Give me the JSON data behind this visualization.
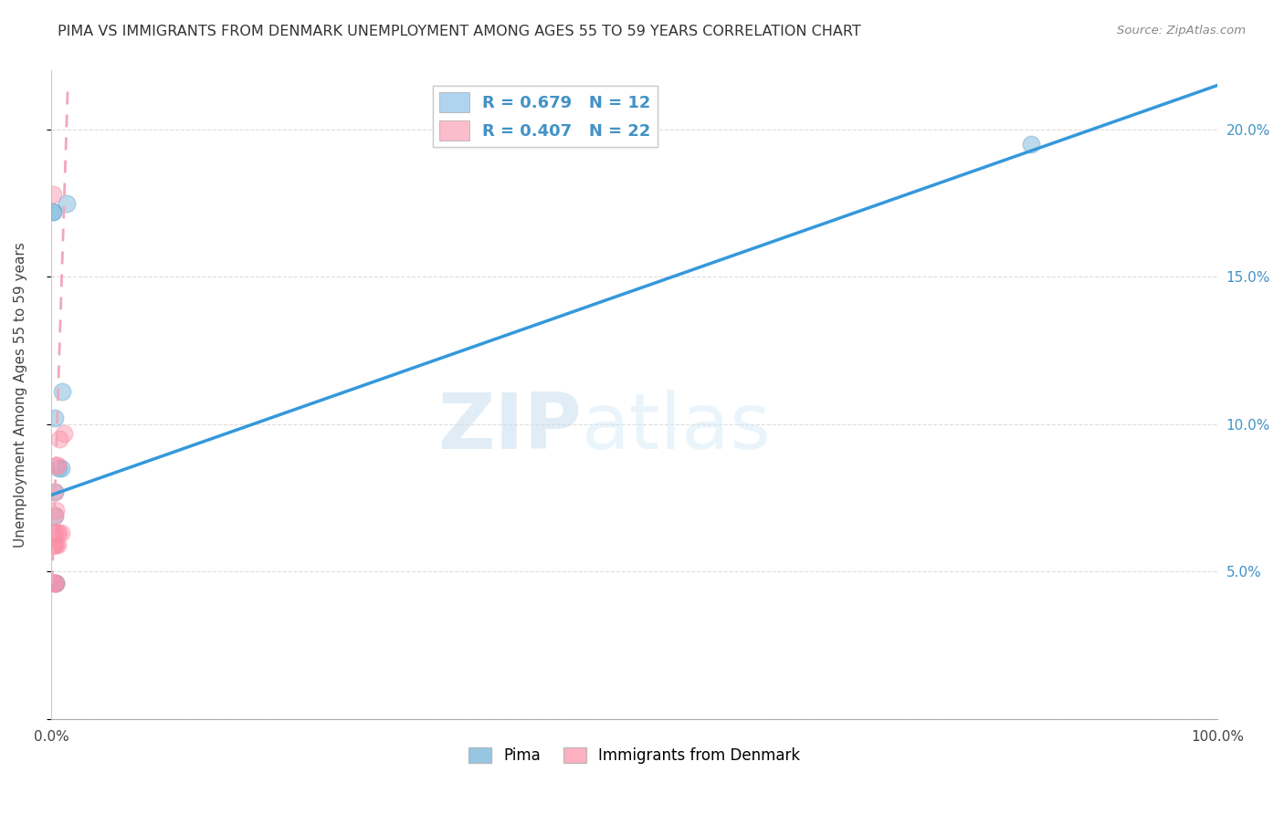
{
  "title": "PIMA VS IMMIGRANTS FROM DENMARK UNEMPLOYMENT AMONG AGES 55 TO 59 YEARS CORRELATION CHART",
  "source": "Source: ZipAtlas.com",
  "ylabel": "Unemployment Among Ages 55 to 59 years",
  "watermark_zip": "ZIP",
  "watermark_atlas": "atlas",
  "xlim": [
    0,
    1.0
  ],
  "ylim": [
    0,
    0.22
  ],
  "x_ticks": [
    0.0,
    0.1,
    0.2,
    0.3,
    0.4,
    0.5,
    0.6,
    0.7,
    0.8,
    0.9,
    1.0
  ],
  "x_tick_labels": [
    "0.0%",
    "",
    "",
    "",
    "",
    "",
    "",
    "",
    "",
    "",
    "100.0%"
  ],
  "y_ticks": [
    0.0,
    0.05,
    0.1,
    0.15,
    0.2
  ],
  "y_tick_labels": [
    "",
    "5.0%",
    "10.0%",
    "15.0%",
    "20.0%"
  ],
  "pima_color": "#6baed6",
  "denmark_color": "#fc8fa8",
  "pima_line_color": "#3498db",
  "denmark_line_color": "#f1a7bb",
  "pima_R": 0.679,
  "pima_N": 12,
  "denmark_R": 0.407,
  "denmark_N": 22,
  "pima_points_x": [
    0.001,
    0.001,
    0.003,
    0.003,
    0.003,
    0.004,
    0.004,
    0.006,
    0.008,
    0.009,
    0.013,
    0.84
  ],
  "pima_points_y": [
    0.172,
    0.172,
    0.069,
    0.077,
    0.102,
    0.046,
    0.046,
    0.085,
    0.085,
    0.111,
    0.175,
    0.195
  ],
  "denmark_points_x": [
    0.001,
    0.001,
    0.001,
    0.002,
    0.002,
    0.002,
    0.002,
    0.003,
    0.003,
    0.003,
    0.003,
    0.004,
    0.004,
    0.004,
    0.004,
    0.005,
    0.005,
    0.005,
    0.006,
    0.007,
    0.008,
    0.011
  ],
  "denmark_points_y": [
    0.178,
    0.059,
    0.063,
    0.046,
    0.046,
    0.059,
    0.063,
    0.059,
    0.063,
    0.069,
    0.077,
    0.046,
    0.059,
    0.071,
    0.086,
    0.059,
    0.063,
    0.086,
    0.063,
    0.095,
    0.063,
    0.097
  ],
  "pima_line_x": [
    0.0,
    1.0
  ],
  "pima_line_y": [
    0.076,
    0.215
  ],
  "denmark_line_x": [
    0.0005,
    0.014
  ],
  "denmark_line_y": [
    0.046,
    0.215
  ],
  "background_color": "#ffffff",
  "grid_color": "#dddddd",
  "title_color": "#333333",
  "tick_label_color_right": "#4292c6",
  "legend_label_color": "#4292c6",
  "legend_patch_pima": "#aed4f0",
  "legend_patch_denmark": "#fbbccc"
}
